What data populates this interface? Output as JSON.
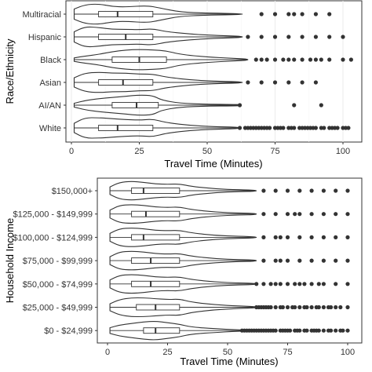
{
  "chart_data": [
    {
      "type": "violin",
      "xlabel": "Travel Time (Minutes)",
      "ylabel": "Race/Ethnicity",
      "xlim": [
        0,
        105
      ],
      "xticks": [
        0,
        25,
        50,
        75,
        100
      ],
      "grid": true,
      "categories": [
        "Multiracial",
        "Hispanic",
        "Black",
        "Asian",
        "AI/AN",
        "White"
      ],
      "groups": [
        {
          "name": "Multiracial",
          "box": {
            "min": 1,
            "q1": 10,
            "median": 17,
            "q3": 30,
            "max": 63
          },
          "density": [
            [
              1,
              0.3
            ],
            [
              5,
              0.55
            ],
            [
              10,
              0.6
            ],
            [
              15,
              0.45
            ],
            [
              20,
              0.42
            ],
            [
              28,
              0.5
            ],
            [
              32,
              0.38
            ],
            [
              40,
              0.12
            ],
            [
              50,
              0.06
            ],
            [
              63,
              0.03
            ]
          ],
          "outliers": [
            70,
            75,
            80,
            82,
            85,
            90,
            95
          ]
        },
        {
          "name": "Hispanic",
          "box": {
            "min": 1,
            "q1": 10,
            "median": 20,
            "q3": 30,
            "max": 63
          },
          "density": [
            [
              1,
              0.3
            ],
            [
              5,
              0.6
            ],
            [
              10,
              0.55
            ],
            [
              15,
              0.45
            ],
            [
              20,
              0.45
            ],
            [
              25,
              0.42
            ],
            [
              30,
              0.48
            ],
            [
              35,
              0.3
            ],
            [
              45,
              0.15
            ],
            [
              55,
              0.07
            ],
            [
              63,
              0.04
            ]
          ],
          "outliers": [
            65,
            70,
            75,
            80,
            85,
            90,
            95,
            100
          ]
        },
        {
          "name": "Black",
          "box": {
            "min": 1,
            "q1": 15,
            "median": 25,
            "q3": 35,
            "max": 65
          },
          "density": [
            [
              1,
              0.1
            ],
            [
              5,
              0.2
            ],
            [
              10,
              0.3
            ],
            [
              15,
              0.45
            ],
            [
              20,
              0.55
            ],
            [
              25,
              0.58
            ],
            [
              30,
              0.55
            ],
            [
              35,
              0.5
            ],
            [
              40,
              0.3
            ],
            [
              50,
              0.15
            ],
            [
              60,
              0.07
            ],
            [
              65,
              0.04
            ]
          ],
          "outliers": [
            68,
            70,
            72,
            75,
            78,
            80,
            82,
            85,
            88,
            90,
            92,
            95,
            100,
            103
          ]
        },
        {
          "name": "Asian",
          "box": {
            "min": 1,
            "q1": 10,
            "median": 19,
            "q3": 30,
            "max": 63
          },
          "density": [
            [
              1,
              0.25
            ],
            [
              5,
              0.5
            ],
            [
              10,
              0.55
            ],
            [
              15,
              0.5
            ],
            [
              20,
              0.5
            ],
            [
              25,
              0.45
            ],
            [
              30,
              0.45
            ],
            [
              35,
              0.28
            ],
            [
              45,
              0.12
            ],
            [
              55,
              0.06
            ],
            [
              63,
              0.03
            ]
          ],
          "outliers": [
            65,
            70,
            75,
            80,
            85,
            90
          ]
        },
        {
          "name": "AI/AN",
          "box": {
            "min": 1,
            "q1": 15,
            "median": 24,
            "q3": 32,
            "max": 62
          },
          "density": [
            [
              1,
              0.1
            ],
            [
              5,
              0.25
            ],
            [
              10,
              0.35
            ],
            [
              15,
              0.42
            ],
            [
              20,
              0.48
            ],
            [
              25,
              0.55
            ],
            [
              30,
              0.52
            ],
            [
              33,
              0.28
            ],
            [
              40,
              0.1
            ],
            [
              50,
              0.05
            ],
            [
              60,
              0.04
            ],
            [
              62,
              0.03
            ]
          ],
          "outliers": [
            62,
            82,
            92
          ]
        },
        {
          "name": "White",
          "box": {
            "min": 1,
            "q1": 10,
            "median": 17,
            "q3": 30,
            "max": 62
          },
          "density": [
            [
              1,
              0.25
            ],
            [
              5,
              0.55
            ],
            [
              10,
              0.55
            ],
            [
              15,
              0.5
            ],
            [
              20,
              0.45
            ],
            [
              25,
              0.42
            ],
            [
              30,
              0.48
            ],
            [
              35,
              0.28
            ],
            [
              45,
              0.12
            ],
            [
              55,
              0.06
            ],
            [
              62,
              0.04
            ]
          ],
          "outliers": [
            62,
            64,
            65,
            66,
            67,
            68,
            69,
            70,
            71,
            72,
            73,
            75,
            76,
            77,
            78,
            80,
            81,
            82,
            84,
            85,
            86,
            87,
            88,
            89,
            90,
            92,
            93,
            95,
            96,
            97,
            98,
            100,
            101,
            102
          ]
        }
      ]
    },
    {
      "type": "violin",
      "xlabel": "Travel Time (Minutes)",
      "ylabel": "Household Income",
      "xlim": [
        -5,
        105
      ],
      "xticks": [
        0,
        25,
        50,
        75,
        100
      ],
      "grid": false,
      "categories": [
        "$150,000+",
        "$125,000 - $149,999",
        "$100,000 - $124,999",
        "$75,000 - $99,999",
        "$50,000 - $74,999",
        "$25,000 - $49,999",
        "$0 - $24,999"
      ],
      "groups": [
        {
          "name": "$150,000+",
          "box": {
            "min": 1,
            "q1": 10,
            "median": 15,
            "q3": 30,
            "max": 62
          },
          "density": [
            [
              1,
              0.25
            ],
            [
              5,
              0.55
            ],
            [
              10,
              0.62
            ],
            [
              15,
              0.55
            ],
            [
              20,
              0.45
            ],
            [
              25,
              0.42
            ],
            [
              30,
              0.45
            ],
            [
              35,
              0.28
            ],
            [
              45,
              0.12
            ],
            [
              55,
              0.06
            ],
            [
              62,
              0.04
            ]
          ],
          "outliers": [
            65,
            70,
            75,
            80,
            85,
            90,
            95,
            100
          ]
        },
        {
          "name": "$125,000 - $149,999",
          "box": {
            "min": 1,
            "q1": 10,
            "median": 16,
            "q3": 30,
            "max": 62
          },
          "density": [
            [
              1,
              0.25
            ],
            [
              5,
              0.55
            ],
            [
              10,
              0.6
            ],
            [
              15,
              0.55
            ],
            [
              20,
              0.45
            ],
            [
              25,
              0.42
            ],
            [
              30,
              0.45
            ],
            [
              35,
              0.28
            ],
            [
              45,
              0.12
            ],
            [
              55,
              0.06
            ],
            [
              62,
              0.04
            ]
          ],
          "outliers": [
            65,
            70,
            75,
            78,
            80,
            85,
            90,
            95,
            100
          ]
        },
        {
          "name": "$100,000 - $124,999",
          "box": {
            "min": 1,
            "q1": 10,
            "median": 15,
            "q3": 30,
            "max": 62
          },
          "density": [
            [
              1,
              0.25
            ],
            [
              5,
              0.55
            ],
            [
              10,
              0.6
            ],
            [
              15,
              0.55
            ],
            [
              20,
              0.45
            ],
            [
              25,
              0.42
            ],
            [
              30,
              0.45
            ],
            [
              35,
              0.28
            ],
            [
              45,
              0.12
            ],
            [
              55,
              0.06
            ],
            [
              62,
              0.04
            ]
          ],
          "outliers": [
            65,
            70,
            72,
            75,
            80,
            85,
            90,
            95,
            100
          ]
        },
        {
          "name": "$75,000 - $99,999",
          "box": {
            "min": 1,
            "q1": 10,
            "median": 18,
            "q3": 30,
            "max": 62
          },
          "density": [
            [
              1,
              0.25
            ],
            [
              5,
              0.55
            ],
            [
              10,
              0.6
            ],
            [
              15,
              0.55
            ],
            [
              20,
              0.45
            ],
            [
              25,
              0.42
            ],
            [
              30,
              0.45
            ],
            [
              35,
              0.28
            ],
            [
              45,
              0.12
            ],
            [
              55,
              0.06
            ],
            [
              62,
              0.04
            ]
          ],
          "outliers": [
            65,
            70,
            72,
            75,
            80,
            85,
            90,
            95,
            100
          ]
        },
        {
          "name": "$50,000 - $74,999",
          "box": {
            "min": 1,
            "q1": 10,
            "median": 18,
            "q3": 30,
            "max": 62
          },
          "density": [
            [
              1,
              0.25
            ],
            [
              5,
              0.55
            ],
            [
              10,
              0.6
            ],
            [
              15,
              0.55
            ],
            [
              20,
              0.45
            ],
            [
              25,
              0.42
            ],
            [
              30,
              0.45
            ],
            [
              35,
              0.28
            ],
            [
              45,
              0.12
            ],
            [
              55,
              0.06
            ],
            [
              62,
              0.04
            ]
          ],
          "outliers": [
            62,
            65,
            68,
            70,
            72,
            75,
            78,
            80,
            82,
            85,
            88,
            90,
            95,
            100
          ]
        },
        {
          "name": "$25,000 - $49,999",
          "box": {
            "min": 1,
            "q1": 12,
            "median": 20,
            "q3": 30,
            "max": 62
          },
          "density": [
            [
              1,
              0.2
            ],
            [
              5,
              0.45
            ],
            [
              10,
              0.55
            ],
            [
              15,
              0.55
            ],
            [
              20,
              0.5
            ],
            [
              25,
              0.45
            ],
            [
              30,
              0.48
            ],
            [
              35,
              0.3
            ],
            [
              45,
              0.14
            ],
            [
              55,
              0.07
            ],
            [
              62,
              0.04
            ]
          ],
          "outliers": [
            62,
            63,
            64,
            65,
            66,
            67,
            68,
            70,
            72,
            73,
            75,
            77,
            78,
            80,
            82,
            83,
            85,
            87,
            88,
            90,
            92,
            93,
            95,
            97,
            100
          ]
        },
        {
          "name": "$0 - $24,999",
          "box": {
            "min": 1,
            "q1": 15,
            "median": 20,
            "q3": 30,
            "max": 58
          },
          "density": [
            [
              1,
              0.18
            ],
            [
              5,
              0.35
            ],
            [
              10,
              0.45
            ],
            [
              15,
              0.55
            ],
            [
              20,
              0.6
            ],
            [
              25,
              0.5
            ],
            [
              30,
              0.4
            ],
            [
              35,
              0.22
            ],
            [
              45,
              0.12
            ],
            [
              52,
              0.06
            ],
            [
              58,
              0.03
            ]
          ],
          "outliers": [
            56,
            57,
            58,
            59,
            60,
            61,
            62,
            63,
            64,
            65,
            66,
            67,
            68,
            69,
            70,
            72,
            73,
            74,
            75,
            76,
            78,
            79,
            80,
            82,
            83,
            85,
            86,
            87,
            88,
            90,
            92,
            93,
            95,
            97,
            98,
            100
          ]
        }
      ]
    }
  ]
}
